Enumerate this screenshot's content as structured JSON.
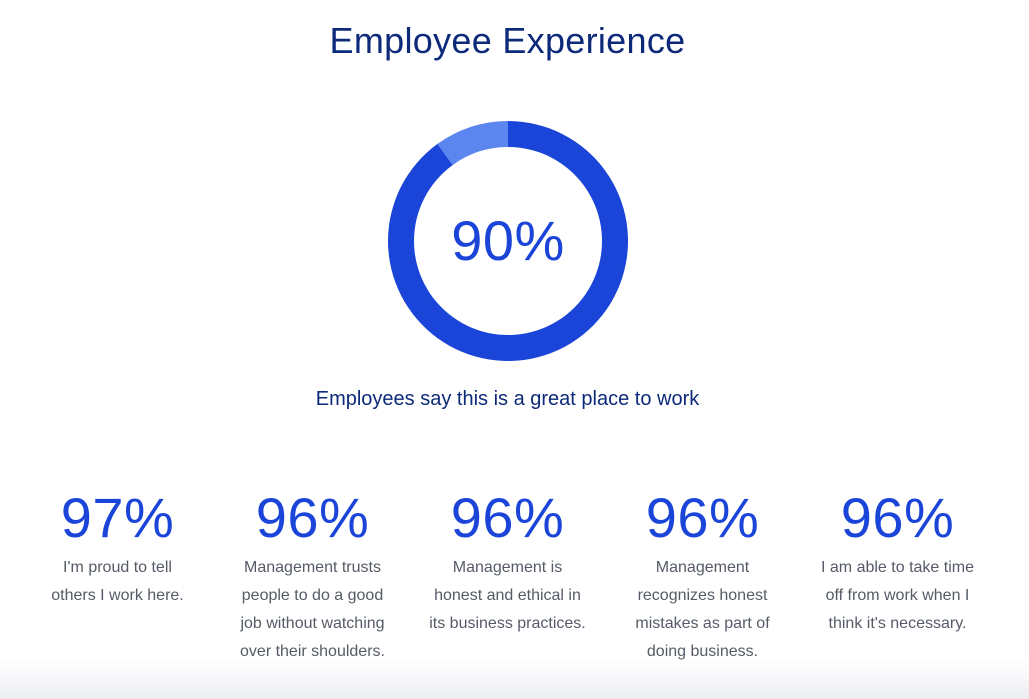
{
  "page": {
    "title": "Employee Experience"
  },
  "colors": {
    "primary": "#1a45d8",
    "primary_light": "#5b86f0",
    "heading": "#0d2a7a",
    "body_text": "#555b66"
  },
  "chart_data": [
    {
      "type": "pie",
      "variant": "donut",
      "slices": [
        {
          "value": 90,
          "color": "#1a45d8"
        },
        {
          "value": 10,
          "color": "#5b86f0"
        }
      ],
      "center_label": "90%",
      "caption": "Employees say this is a great place to work"
    }
  ],
  "stats": [
    {
      "value": "97%",
      "label": "I'm proud to tell others I work here."
    },
    {
      "value": "96%",
      "label": "Management trusts people to do a good job without watching over their shoulders."
    },
    {
      "value": "96%",
      "label": "Management is honest and ethical in its business practices."
    },
    {
      "value": "96%",
      "label": "Management recognizes honest mistakes as part of doing business."
    },
    {
      "value": "96%",
      "label": "I am able to take time off from work when I think it's necessary."
    }
  ]
}
